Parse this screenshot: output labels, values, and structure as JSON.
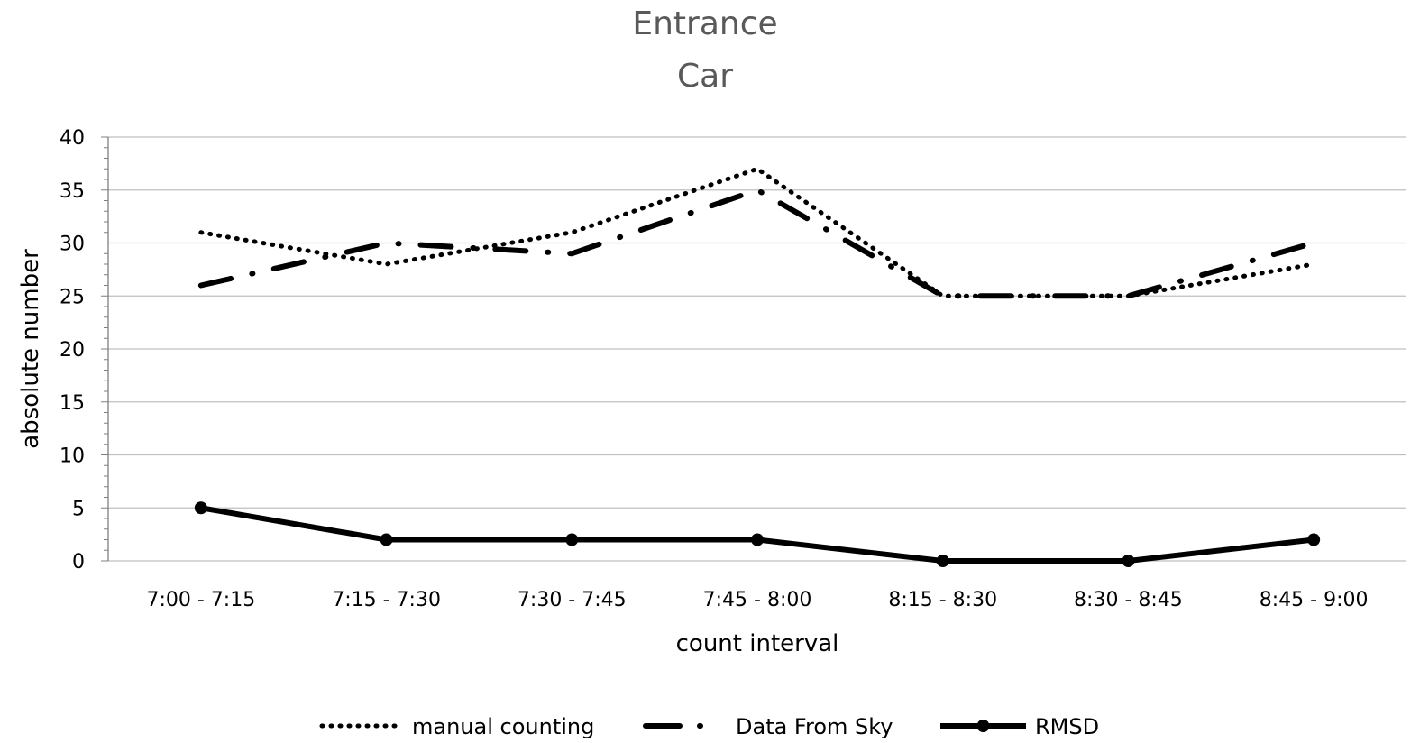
{
  "chart_data": {
    "type": "line",
    "title": "Entrance",
    "subtitle": "Car",
    "xlabel": "count interval",
    "ylabel": "absolute number",
    "categories": [
      "7:00 - 7:15",
      "7:15 - 7:30",
      "7:30 - 7:45",
      "7:45 - 8:00",
      "8:15 - 8:30",
      "8:30 - 8:45",
      "8:45 - 9:00"
    ],
    "ylim": [
      0,
      40
    ],
    "yticks": [
      0,
      5,
      10,
      15,
      20,
      25,
      30,
      35,
      40
    ],
    "grid": true,
    "legend_position": "bottom",
    "series": [
      {
        "name": "manual counting",
        "style": "dotted",
        "values": [
          31,
          28,
          31,
          37,
          25,
          25,
          28
        ]
      },
      {
        "name": "Data From Sky",
        "style": "dash-dot",
        "values": [
          26,
          30,
          29,
          35,
          25,
          25,
          30
        ]
      },
      {
        "name": "RMSD",
        "style": "solid-markers",
        "values": [
          5,
          2,
          2,
          2,
          0,
          0,
          2
        ]
      }
    ],
    "colors": {
      "line": "#000000",
      "grid": "#bfbfbf",
      "axis": "#7f7f7f",
      "title": "#595959"
    }
  }
}
